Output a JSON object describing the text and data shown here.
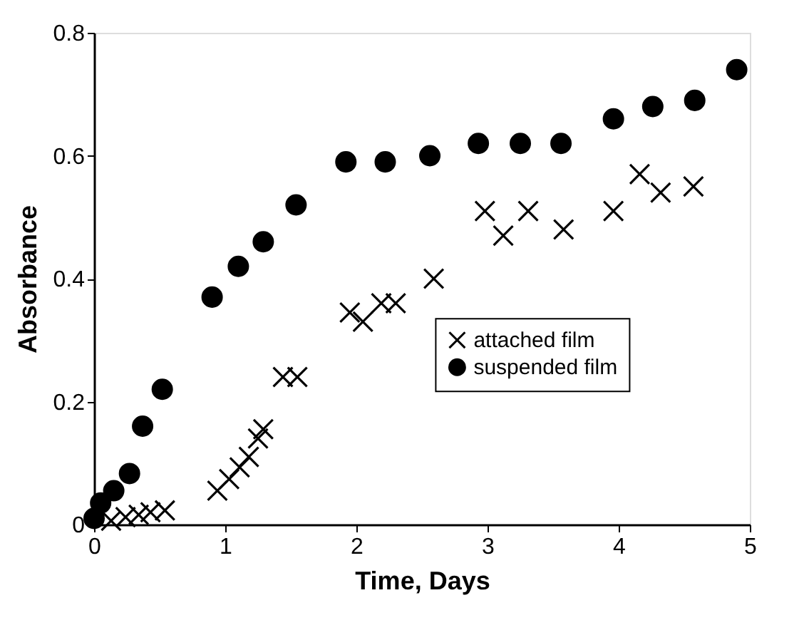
{
  "chart_data": {
    "type": "scatter",
    "xlabel": "Time, Days",
    "ylabel": "Absorbance",
    "xlim": [
      0,
      5
    ],
    "xticks": [
      0,
      1,
      2,
      3,
      4,
      5
    ],
    "ylim": [
      0,
      0.8
    ],
    "yticks": [
      0,
      0.2,
      0.4,
      0.6,
      0.8
    ],
    "grid": false,
    "legend": "right",
    "series": [
      {
        "name": "attached film",
        "color": "#000000",
        "marker": "cross",
        "x": [
          0.13,
          0.24,
          0.34,
          0.43,
          0.54,
          0.94,
          1.03,
          1.11,
          1.18,
          1.25,
          1.29,
          1.44,
          1.55,
          1.95,
          2.05,
          2.19,
          2.3,
          2.59,
          2.98,
          3.12,
          3.31,
          3.58,
          3.96,
          4.16,
          4.32,
          4.57
        ],
        "values": [
          0.006,
          0.012,
          0.016,
          0.02,
          0.023,
          0.055,
          0.074,
          0.093,
          0.11,
          0.14,
          0.155,
          0.24,
          0.24,
          0.345,
          0.33,
          0.36,
          0.36,
          0.4,
          0.51,
          0.47,
          0.51,
          0.48,
          0.51,
          0.57,
          0.54,
          0.55
        ]
      },
      {
        "name": "suspended film",
        "color": "#000000",
        "marker": "circle",
        "x": [
          0,
          0.05,
          0.15,
          0.27,
          0.37,
          0.52,
          0.9,
          1.1,
          1.29,
          1.54,
          1.92,
          2.22,
          2.56,
          2.93,
          3.25,
          3.56,
          3.96,
          4.26,
          4.58,
          4.9
        ],
        "values": [
          0.01,
          0.035,
          0.055,
          0.083,
          0.16,
          0.22,
          0.37,
          0.42,
          0.46,
          0.52,
          0.59,
          0.59,
          0.6,
          0.62,
          0.62,
          0.62,
          0.66,
          0.68,
          0.69,
          0.74
        ]
      }
    ]
  }
}
